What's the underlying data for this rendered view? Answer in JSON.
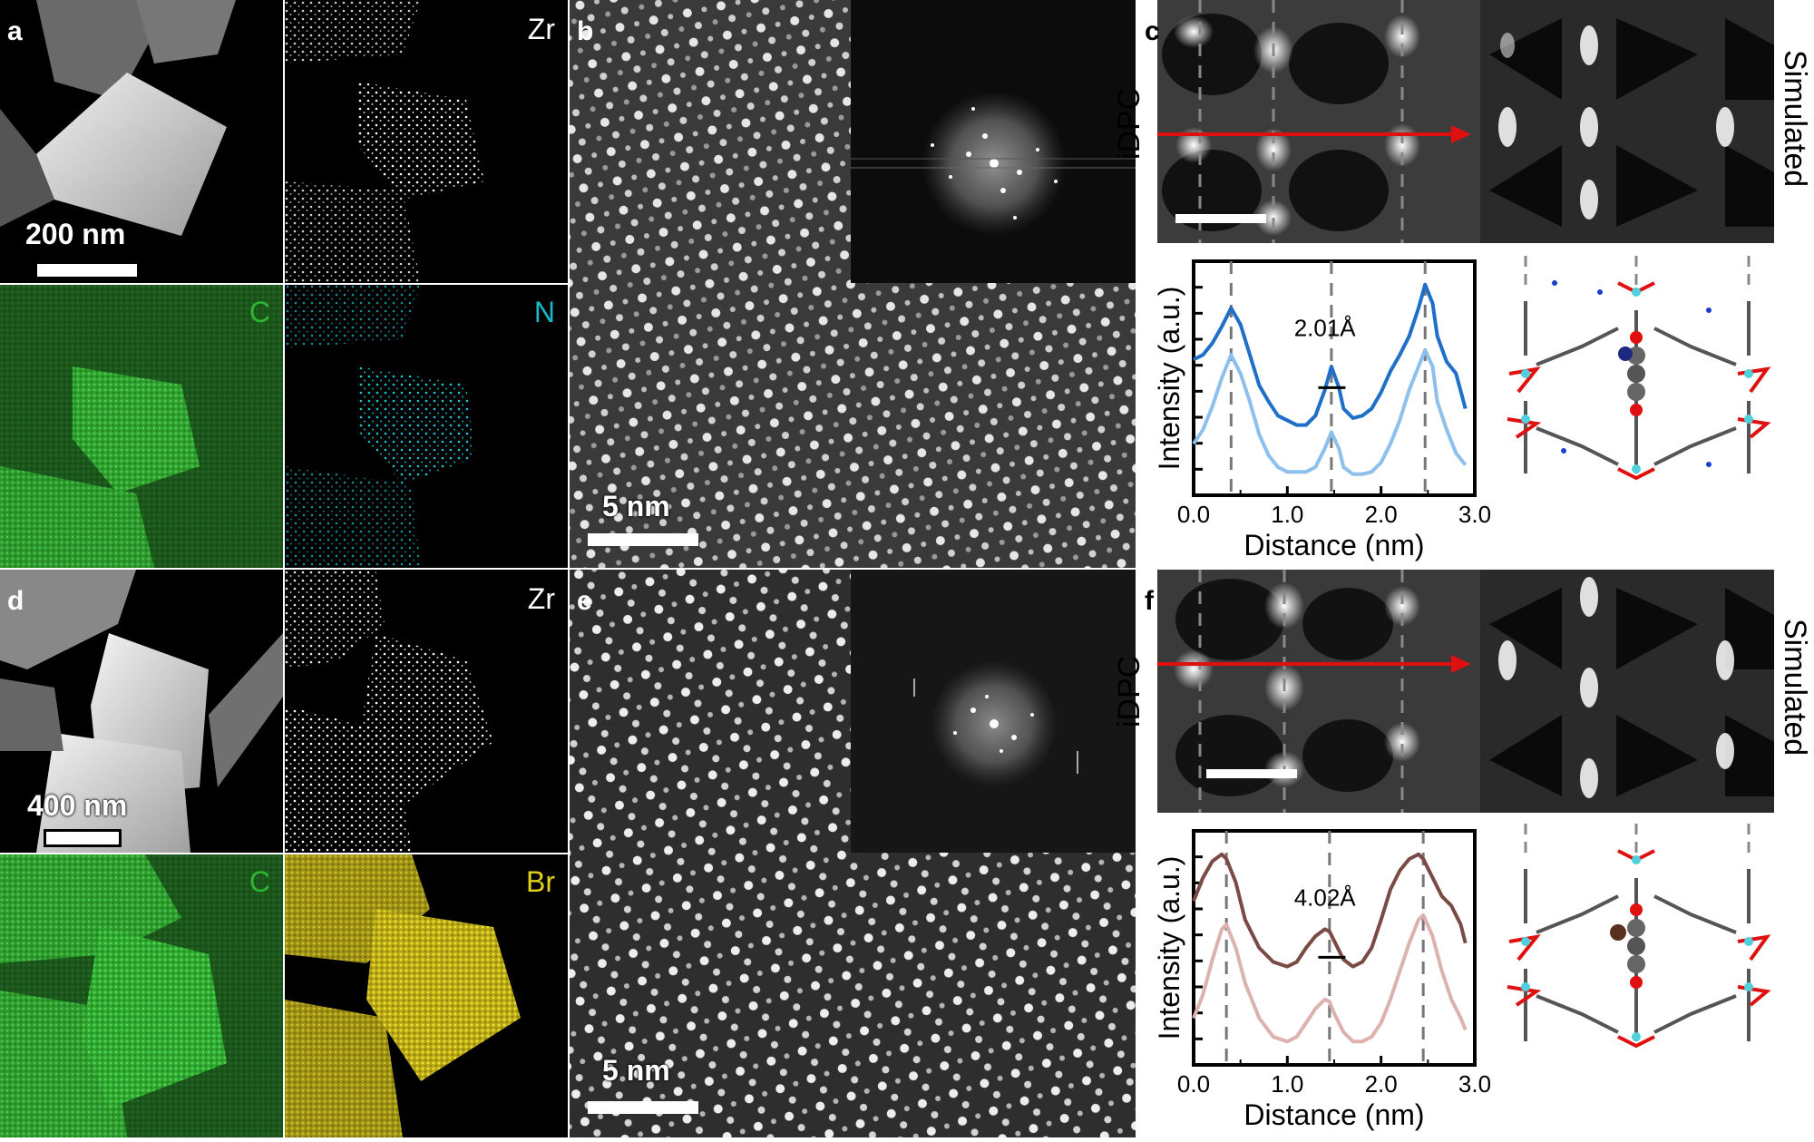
{
  "panels": {
    "a": {
      "label": "a",
      "scalebar": "200 nm",
      "maps": [
        {
          "element": "Zr",
          "color": "#ffffff"
        },
        {
          "element": "C",
          "color": "#2fb52f"
        },
        {
          "element": "N",
          "color": "#19b8c8"
        }
      ]
    },
    "b": {
      "label": "b",
      "scalebar": "5 nm"
    },
    "c": {
      "label": "c",
      "left_label": "iDPC",
      "right_label": "Simulated",
      "annotation": "2.01Å"
    },
    "d": {
      "label": "d",
      "scalebar": "400 nm",
      "maps": [
        {
          "element": "Zr",
          "color": "#ffffff"
        },
        {
          "element": "C",
          "color": "#2fb52f"
        },
        {
          "element": "Br",
          "color": "#e0d21a"
        }
      ]
    },
    "e": {
      "label": "e",
      "scalebar": "5 nm"
    },
    "f": {
      "label": "f",
      "left_label": "iDPC",
      "right_label": "Simulated",
      "annotation": "4.02Å"
    }
  },
  "chart_data": [
    {
      "type": "line",
      "panel": "c",
      "xlabel": "Distance (nm)",
      "ylabel": "Intensity (a.u.)",
      "xlim": [
        0.0,
        3.0
      ],
      "xticks": [
        "0.0",
        "1.0",
        "2.0",
        "3.0"
      ],
      "annotation": "2.01Å",
      "dashed_lines_x": [
        0.4,
        1.47,
        2.47
      ],
      "colors": [
        "#1f6fc8",
        "#8ec0ee"
      ],
      "series": [
        {
          "x": [
            0.0,
            0.1,
            0.2,
            0.3,
            0.4,
            0.5,
            0.6,
            0.7,
            0.8,
            0.9,
            1.0,
            1.1,
            1.2,
            1.3,
            1.4,
            1.47,
            1.55,
            1.6,
            1.7,
            1.8,
            1.9,
            2.0,
            2.1,
            2.2,
            2.3,
            2.4,
            2.47,
            2.55,
            2.6,
            2.7,
            2.8,
            2.9
          ],
          "y": [
            0.58,
            0.6,
            0.65,
            0.72,
            0.8,
            0.73,
            0.6,
            0.47,
            0.4,
            0.34,
            0.32,
            0.3,
            0.3,
            0.34,
            0.45,
            0.55,
            0.46,
            0.37,
            0.33,
            0.34,
            0.37,
            0.44,
            0.53,
            0.6,
            0.68,
            0.8,
            0.9,
            0.82,
            0.68,
            0.57,
            0.52,
            0.37
          ]
        },
        {
          "x": [
            0.0,
            0.1,
            0.2,
            0.3,
            0.4,
            0.5,
            0.6,
            0.7,
            0.8,
            0.9,
            1.0,
            1.1,
            1.2,
            1.3,
            1.4,
            1.47,
            1.55,
            1.6,
            1.7,
            1.8,
            1.9,
            2.0,
            2.1,
            2.2,
            2.3,
            2.4,
            2.47,
            2.55,
            2.6,
            2.7,
            2.8,
            2.9
          ],
          "y": [
            0.22,
            0.28,
            0.38,
            0.5,
            0.6,
            0.52,
            0.4,
            0.26,
            0.17,
            0.12,
            0.1,
            0.1,
            0.1,
            0.12,
            0.2,
            0.27,
            0.2,
            0.12,
            0.09,
            0.09,
            0.1,
            0.14,
            0.22,
            0.32,
            0.45,
            0.55,
            0.62,
            0.55,
            0.4,
            0.28,
            0.18,
            0.13
          ]
        }
      ]
    },
    {
      "type": "line",
      "panel": "f",
      "xlabel": "Distance (nm)",
      "ylabel": "Intensity (a.u.)",
      "xlim": [
        0.0,
        3.0
      ],
      "xticks": [
        "0.0",
        "1.0",
        "2.0",
        "3.0"
      ],
      "annotation": "4.02Å",
      "dashed_lines_x": [
        0.35,
        1.45,
        2.45
      ],
      "colors": [
        "#7a4a44",
        "#dcb2ae"
      ],
      "series": [
        {
          "x": [
            0.0,
            0.1,
            0.2,
            0.3,
            0.35,
            0.45,
            0.55,
            0.7,
            0.85,
            1.0,
            1.1,
            1.2,
            1.3,
            1.4,
            1.45,
            1.5,
            1.6,
            1.7,
            1.8,
            1.9,
            2.0,
            2.1,
            2.2,
            2.3,
            2.4,
            2.45,
            2.55,
            2.65,
            2.75,
            2.85,
            2.9
          ],
          "y": [
            0.7,
            0.8,
            0.87,
            0.9,
            0.88,
            0.78,
            0.62,
            0.5,
            0.44,
            0.42,
            0.44,
            0.5,
            0.55,
            0.58,
            0.57,
            0.53,
            0.45,
            0.42,
            0.44,
            0.5,
            0.62,
            0.75,
            0.83,
            0.88,
            0.9,
            0.88,
            0.8,
            0.72,
            0.68,
            0.6,
            0.52
          ]
        },
        {
          "x": [
            0.0,
            0.1,
            0.2,
            0.3,
            0.35,
            0.45,
            0.55,
            0.7,
            0.85,
            1.0,
            1.1,
            1.2,
            1.3,
            1.4,
            1.45,
            1.5,
            1.6,
            1.7,
            1.8,
            1.9,
            2.0,
            2.1,
            2.2,
            2.3,
            2.4,
            2.45,
            2.55,
            2.65,
            2.75,
            2.85,
            2.9
          ],
          "y": [
            0.2,
            0.3,
            0.45,
            0.58,
            0.6,
            0.5,
            0.35,
            0.2,
            0.12,
            0.1,
            0.12,
            0.18,
            0.24,
            0.28,
            0.27,
            0.22,
            0.14,
            0.1,
            0.1,
            0.12,
            0.18,
            0.28,
            0.4,
            0.52,
            0.62,
            0.64,
            0.55,
            0.4,
            0.28,
            0.2,
            0.15
          ]
        }
      ]
    }
  ]
}
